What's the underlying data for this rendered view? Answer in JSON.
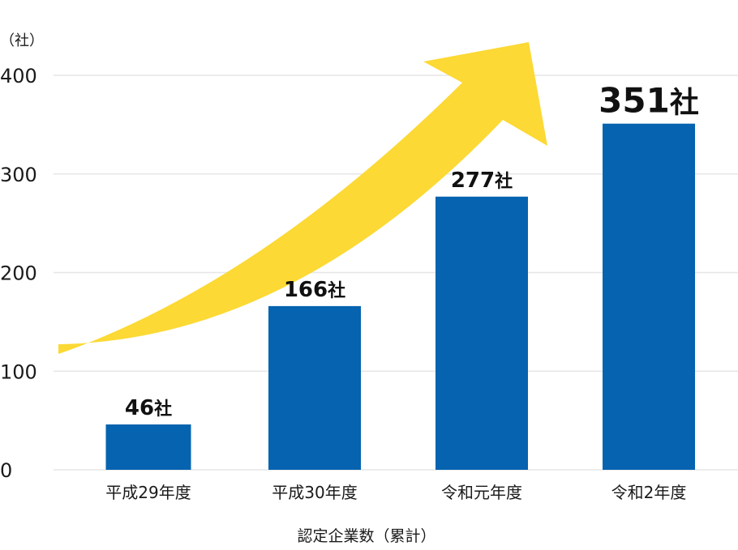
{
  "chart_data": {
    "type": "bar",
    "unit_label": "（社）",
    "categories": [
      "平成29年度",
      "平成30年度",
      "令和元年度",
      "令和2年度"
    ],
    "values": [
      46,
      166,
      277,
      351
    ],
    "data_labels": [
      "46社",
      "166社",
      "277社",
      "351社"
    ],
    "caption": "認定企業数（累計）",
    "ylim": [
      0,
      400
    ],
    "yticks": [
      0,
      100,
      200,
      300,
      400
    ],
    "ytick_labels": [
      "0",
      "100",
      "200",
      "300",
      "400"
    ],
    "grid": true,
    "bar_color": "#0563b0",
    "arrow_color": "#fcd934",
    "arrow_direction": "upward trend"
  }
}
